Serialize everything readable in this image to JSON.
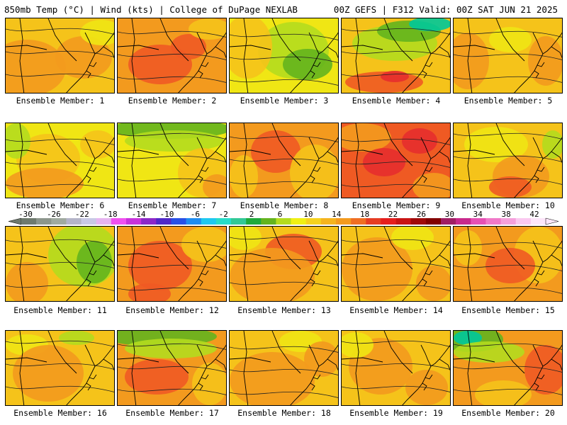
{
  "header": {
    "left": "850mb Temp (°C) | Wind (kts) | College of DuPage NEXLAB",
    "right": "00Z GEFS | F312 Valid: 00Z SAT JUN 21 2025"
  },
  "colors": {
    "cold_deep": "#00c89a",
    "green": "#64b41e",
    "yellowgreen": "#b4dc1e",
    "yellow": "#f0e614",
    "gold": "#f5c31a",
    "orange": "#f39a1e",
    "red_orange": "#ef5a23",
    "red": "#e62d2d",
    "contour": "#222222",
    "coast": "#000000"
  },
  "members": [
    {
      "label": "Ensemble Member: 1",
      "base": "gold",
      "blobs": [
        [
          "orange",
          30,
          70,
          55,
          40
        ],
        [
          "orange",
          110,
          55,
          40,
          30
        ],
        [
          "yellow",
          135,
          20,
          30,
          18
        ]
      ]
    },
    {
      "label": "Ensemble Member: 2",
      "base": "orange",
      "blobs": [
        [
          "red_orange",
          60,
          65,
          45,
          28
        ],
        [
          "red_orange",
          100,
          40,
          25,
          18
        ],
        [
          "gold",
          130,
          15,
          30,
          15
        ]
      ]
    },
    {
      "label": "Ensemble Member: 3",
      "base": "yellow",
      "blobs": [
        [
          "yellowgreen",
          90,
          45,
          50,
          40
        ],
        [
          "green",
          110,
          65,
          35,
          22
        ],
        [
          "gold",
          25,
          40,
          35,
          45
        ]
      ]
    },
    {
      "label": "Ensemble Member: 4",
      "base": "gold",
      "blobs": [
        [
          "yellowgreen",
          75,
          35,
          60,
          25
        ],
        [
          "green",
          95,
          18,
          45,
          15
        ],
        [
          "cold_deep",
          125,
          8,
          30,
          10
        ],
        [
          "red_orange",
          60,
          90,
          55,
          15
        ],
        [
          "red",
          75,
          82,
          20,
          8
        ]
      ]
    },
    {
      "label": "Ensemble Member: 5",
      "base": "gold",
      "blobs": [
        [
          "orange",
          20,
          60,
          30,
          40
        ],
        [
          "orange",
          130,
          60,
          25,
          35
        ],
        [
          "yellow",
          80,
          30,
          30,
          18
        ]
      ]
    },
    {
      "label": "Ensemble Member: 6",
      "base": "yellow",
      "blobs": [
        [
          "gold",
          60,
          50,
          45,
          35
        ],
        [
          "orange",
          55,
          85,
          55,
          22
        ],
        [
          "yellowgreen",
          15,
          25,
          20,
          25
        ],
        [
          "gold",
          130,
          30,
          25,
          20
        ]
      ]
    },
    {
      "label": "Ensemble Member: 7",
      "base": "yellow",
      "blobs": [
        [
          "green",
          75,
          8,
          85,
          14
        ],
        [
          "yellowgreen",
          80,
          25,
          70,
          15
        ],
        [
          "gold",
          120,
          70,
          35,
          35
        ],
        [
          "orange",
          140,
          90,
          20,
          18
        ]
      ]
    },
    {
      "label": "Ensemble Member: 8",
      "base": "orange",
      "blobs": [
        [
          "red_orange",
          65,
          40,
          35,
          30
        ],
        [
          "gold",
          120,
          70,
          35,
          40
        ],
        [
          "gold",
          20,
          75,
          20,
          30
        ]
      ]
    },
    {
      "label": "Ensemble Member: 9",
      "base": "red_orange",
      "blobs": [
        [
          "orange",
          30,
          20,
          40,
          20
        ],
        [
          "red",
          110,
          25,
          25,
          18
        ],
        [
          "red",
          60,
          55,
          30,
          20
        ],
        [
          "orange",
          130,
          90,
          30,
          20
        ]
      ]
    },
    {
      "label": "Ensemble Member: 10",
      "base": "gold",
      "blobs": [
        [
          "yellow",
          60,
          30,
          45,
          25
        ],
        [
          "orange",
          95,
          75,
          40,
          30
        ],
        [
          "red_orange",
          80,
          90,
          30,
          15
        ],
        [
          "yellowgreen",
          140,
          30,
          15,
          20
        ]
      ]
    },
    {
      "label": "Ensemble Member: 11",
      "base": "gold",
      "blobs": [
        [
          "yellowgreen",
          110,
          40,
          50,
          45
        ],
        [
          "green",
          125,
          50,
          25,
          30
        ],
        [
          "orange",
          30,
          80,
          30,
          30
        ]
      ]
    },
    {
      "label": "Ensemble Member: 12",
      "base": "orange",
      "blobs": [
        [
          "red_orange",
          60,
          55,
          45,
          35
        ],
        [
          "gold",
          125,
          25,
          35,
          25
        ],
        [
          "red_orange",
          45,
          95,
          30,
          15
        ]
      ]
    },
    {
      "label": "Ensemble Member: 13",
      "base": "gold",
      "blobs": [
        [
          "red_orange",
          90,
          35,
          40,
          25
        ],
        [
          "orange",
          60,
          70,
          60,
          40
        ],
        [
          "yellow",
          20,
          15,
          25,
          18
        ]
      ]
    },
    {
      "label": "Ensemble Member: 14",
      "base": "gold",
      "blobs": [
        [
          "orange",
          50,
          60,
          50,
          45
        ],
        [
          "yellow",
          100,
          15,
          30,
          18
        ],
        [
          "orange",
          130,
          80,
          25,
          25
        ]
      ]
    },
    {
      "label": "Ensemble Member: 15",
      "base": "orange",
      "blobs": [
        [
          "gold",
          120,
          40,
          35,
          40
        ],
        [
          "red_orange",
          80,
          55,
          35,
          25
        ],
        [
          "gold",
          20,
          30,
          20,
          25
        ]
      ]
    },
    {
      "label": "Ensemble Member: 16",
      "base": "gold",
      "blobs": [
        [
          "yellow",
          30,
          20,
          30,
          15
        ],
        [
          "orange",
          60,
          60,
          50,
          40
        ],
        [
          "yellowgreen",
          100,
          10,
          25,
          10
        ]
      ]
    },
    {
      "label": "Ensemble Member: 17",
      "base": "orange",
      "blobs": [
        [
          "green",
          60,
          8,
          80,
          14
        ],
        [
          "yellowgreen",
          75,
          25,
          65,
          14
        ],
        [
          "red_orange",
          55,
          65,
          45,
          25
        ],
        [
          "gold",
          130,
          75,
          25,
          30
        ]
      ]
    },
    {
      "label": "Ensemble Member: 18",
      "base": "gold",
      "blobs": [
        [
          "orange",
          60,
          70,
          60,
          40
        ],
        [
          "yellow",
          100,
          15,
          30,
          15
        ],
        [
          "orange",
          130,
          40,
          25,
          25
        ]
      ]
    },
    {
      "label": "Ensemble Member: 19",
      "base": "gold",
      "blobs": [
        [
          "orange",
          55,
          50,
          45,
          40
        ],
        [
          "yellow",
          20,
          20,
          25,
          18
        ],
        [
          "orange",
          120,
          80,
          30,
          25
        ]
      ]
    },
    {
      "label": "Ensemble Member: 20",
      "base": "orange",
      "blobs": [
        [
          "green",
          25,
          12,
          45,
          18
        ],
        [
          "cold_deep",
          20,
          10,
          20,
          10
        ],
        [
          "yellowgreen",
          50,
          30,
          50,
          15
        ],
        [
          "red_orange",
          130,
          55,
          30,
          35
        ],
        [
          "gold",
          70,
          90,
          40,
          20
        ]
      ]
    }
  ],
  "colorbar": {
    "ticks": [
      "-30",
      "-26",
      "-22",
      "-18",
      "-14",
      "-10",
      "-6",
      "-2",
      "2",
      "6",
      "10",
      "14",
      "18",
      "22",
      "26",
      "30",
      "34",
      "38",
      "42"
    ],
    "colors": [
      "#6e7a6e",
      "#8c968c",
      "#a0aaa0",
      "#b4b4c8",
      "#c8c8e6",
      "#e6b4f0",
      "#f050f0",
      "#c832dc",
      "#8c28c8",
      "#5028c8",
      "#2850e6",
      "#1e8cf0",
      "#1ec8f0",
      "#28dcc8",
      "#32c896",
      "#1eaa3c",
      "#64b41e",
      "#b4dc1e",
      "#f0f014",
      "#f5d21e",
      "#f5b41e",
      "#f39a1e",
      "#ef6e23",
      "#e63c23",
      "#e61e1e",
      "#c81414",
      "#a00a0a",
      "#820000",
      "#a01e64",
      "#c8288c",
      "#e650b4",
      "#f078c8",
      "#f5a0dc",
      "#fac8f0",
      "#fde6fa"
    ]
  }
}
